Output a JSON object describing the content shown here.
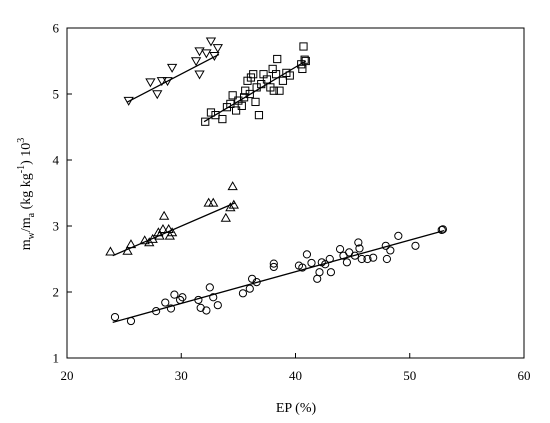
{
  "chart_data": {
    "type": "scatter",
    "title": "",
    "xlabel": "EP (%)",
    "ylabel": {
      "m": "m",
      "sub_w": "w",
      "slash": "/m",
      "sub_a": "a",
      "units": " (kg kg",
      "sup": "-1",
      "tail": ") 10",
      "sup3": "3"
    },
    "xlim": [
      20,
      60
    ],
    "ylim": [
      1,
      6
    ],
    "xticks": [
      "20",
      "30",
      "40",
      "50",
      "60"
    ],
    "yticks": [
      "1",
      "2",
      "3",
      "4",
      "5",
      "6"
    ],
    "grid": false,
    "legend": "none",
    "series": [
      {
        "marker": "triangle-down",
        "points": [
          [
            25.4,
            4.9
          ],
          [
            27.3,
            5.18
          ],
          [
            27.9,
            5.0
          ],
          [
            28.3,
            5.2
          ],
          [
            28.8,
            5.2
          ],
          [
            29.2,
            5.4
          ],
          [
            31.3,
            5.5
          ],
          [
            31.6,
            5.3
          ],
          [
            31.6,
            5.65
          ],
          [
            32.2,
            5.62
          ],
          [
            32.6,
            5.8
          ],
          [
            32.9,
            5.58
          ],
          [
            33.2,
            5.7
          ]
        ],
        "fit": [
          [
            25.3,
            4.88
          ],
          [
            33.3,
            5.6
          ]
        ]
      },
      {
        "marker": "square",
        "points": [
          [
            32.1,
            4.58
          ],
          [
            32.6,
            4.72
          ],
          [
            33.0,
            4.68
          ],
          [
            33.6,
            4.62
          ],
          [
            34.0,
            4.8
          ],
          [
            34.3,
            4.85
          ],
          [
            34.5,
            4.98
          ],
          [
            34.8,
            4.75
          ],
          [
            35.0,
            4.9
          ],
          [
            35.3,
            4.82
          ],
          [
            35.5,
            4.95
          ],
          [
            35.6,
            5.05
          ],
          [
            35.8,
            5.2
          ],
          [
            36.0,
            5.0
          ],
          [
            36.1,
            5.25
          ],
          [
            36.3,
            5.3
          ],
          [
            36.5,
            4.88
          ],
          [
            36.6,
            5.1
          ],
          [
            36.8,
            4.68
          ],
          [
            37.0,
            5.15
          ],
          [
            37.2,
            5.3
          ],
          [
            37.5,
            5.22
          ],
          [
            37.8,
            5.1
          ],
          [
            38.0,
            5.38
          ],
          [
            38.1,
            5.05
          ],
          [
            38.3,
            5.3
          ],
          [
            38.4,
            5.53
          ],
          [
            38.6,
            5.05
          ],
          [
            38.9,
            5.2
          ],
          [
            39.2,
            5.32
          ],
          [
            39.5,
            5.28
          ],
          [
            40.5,
            5.45
          ],
          [
            40.6,
            5.38
          ],
          [
            40.7,
            5.72
          ],
          [
            40.8,
            5.52
          ],
          [
            40.9,
            5.5
          ]
        ],
        "fit": [
          [
            32.0,
            4.58
          ],
          [
            40.9,
            5.5
          ]
        ]
      },
      {
        "marker": "triangle-up",
        "points": [
          [
            23.8,
            2.61
          ],
          [
            25.3,
            2.62
          ],
          [
            25.6,
            2.72
          ],
          [
            26.8,
            2.78
          ],
          [
            27.2,
            2.75
          ],
          [
            27.5,
            2.8
          ],
          [
            28.0,
            2.9
          ],
          [
            28.1,
            2.85
          ],
          [
            28.4,
            2.95
          ],
          [
            28.5,
            3.15
          ],
          [
            28.9,
            2.95
          ],
          [
            29.0,
            2.85
          ],
          [
            29.2,
            2.9
          ],
          [
            32.4,
            3.35
          ],
          [
            32.8,
            3.35
          ],
          [
            33.9,
            3.12
          ],
          [
            34.3,
            3.28
          ],
          [
            34.5,
            3.6
          ],
          [
            34.6,
            3.32
          ]
        ],
        "fit": [
          [
            24.0,
            2.55
          ],
          [
            34.7,
            3.35
          ]
        ]
      },
      {
        "marker": "circle",
        "points": [
          [
            24.2,
            1.62
          ],
          [
            25.6,
            1.56
          ],
          [
            27.8,
            1.71
          ],
          [
            28.6,
            1.84
          ],
          [
            29.1,
            1.75
          ],
          [
            29.4,
            1.96
          ],
          [
            29.9,
            1.88
          ],
          [
            30.1,
            1.92
          ],
          [
            31.5,
            1.88
          ],
          [
            31.7,
            1.76
          ],
          [
            32.2,
            1.72
          ],
          [
            32.5,
            2.07
          ],
          [
            32.8,
            1.92
          ],
          [
            33.2,
            1.8
          ],
          [
            35.4,
            1.98
          ],
          [
            36.0,
            2.05
          ],
          [
            36.2,
            2.2
          ],
          [
            36.6,
            2.15
          ],
          [
            38.1,
            2.38
          ],
          [
            38.1,
            2.43
          ],
          [
            40.3,
            2.4
          ],
          [
            40.6,
            2.37
          ],
          [
            41.0,
            2.57
          ],
          [
            41.4,
            2.44
          ],
          [
            41.9,
            2.2
          ],
          [
            42.1,
            2.3
          ],
          [
            42.3,
            2.45
          ],
          [
            42.6,
            2.42
          ],
          [
            43.0,
            2.5
          ],
          [
            43.1,
            2.3
          ],
          [
            43.9,
            2.65
          ],
          [
            44.2,
            2.55
          ],
          [
            44.5,
            2.45
          ],
          [
            44.7,
            2.6
          ],
          [
            45.2,
            2.55
          ],
          [
            45.5,
            2.75
          ],
          [
            45.6,
            2.66
          ],
          [
            45.8,
            2.5
          ],
          [
            46.3,
            2.5
          ],
          [
            46.8,
            2.52
          ],
          [
            47.9,
            2.7
          ],
          [
            48.0,
            2.5
          ],
          [
            48.3,
            2.63
          ],
          [
            49.0,
            2.85
          ],
          [
            50.5,
            2.7
          ],
          [
            52.8,
            2.94
          ],
          [
            52.9,
            2.95
          ]
        ],
        "fit": [
          [
            24.0,
            1.54
          ],
          [
            53.0,
            2.93
          ]
        ]
      }
    ]
  }
}
